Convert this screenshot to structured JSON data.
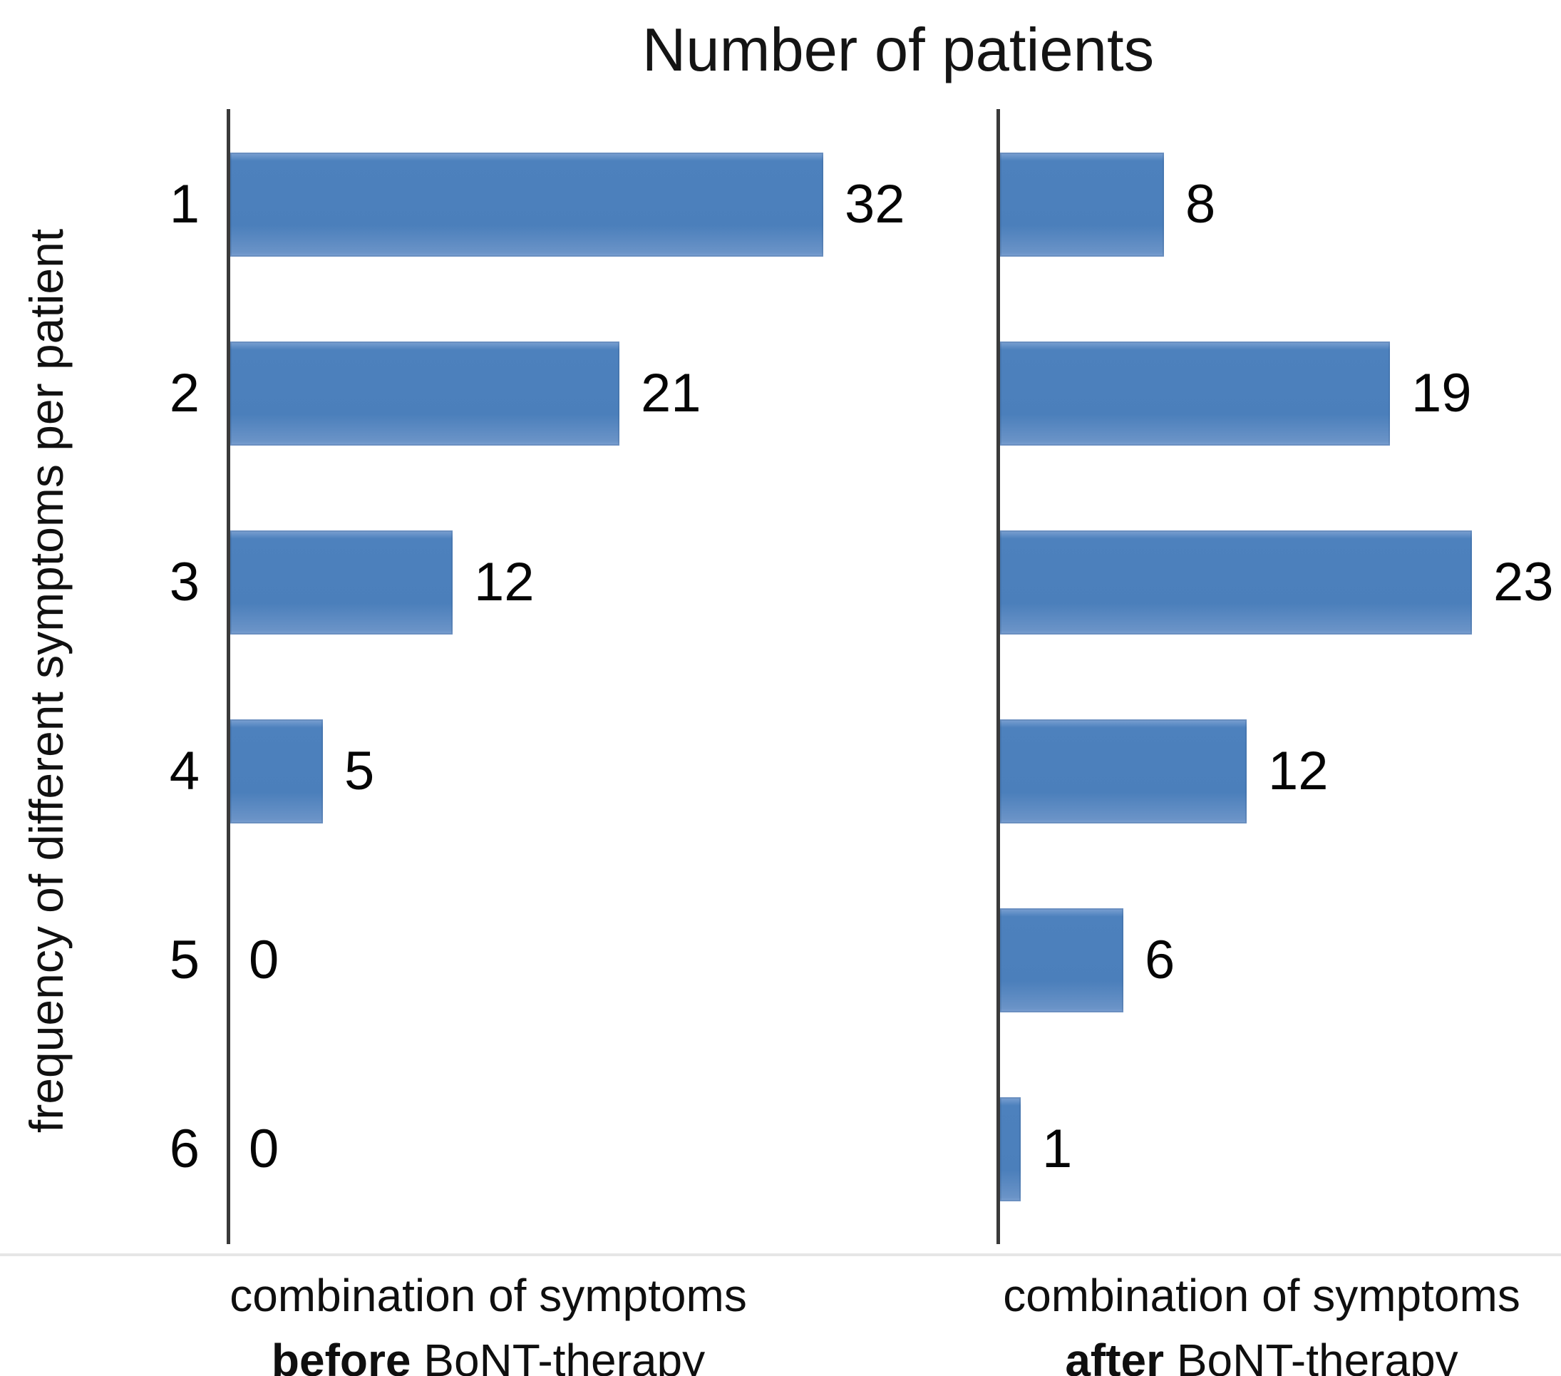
{
  "title": "Number of patients",
  "y_axis_label": "frequency of different symptoms per patient",
  "colors": {
    "bar": "#4d81bd",
    "axis": "#3a3a3a",
    "text": "#0f0f0f",
    "divider": "#e6e6e6"
  },
  "chart_data": {
    "type": "bar",
    "orientation": "horizontal",
    "title": "Number of patients",
    "ylabel": "frequency of different symptoms per patient",
    "categories": [
      "1",
      "2",
      "3",
      "4",
      "5",
      "6"
    ],
    "series": [
      {
        "name": "combination of symptoms before BoNT-therapy",
        "caption": {
          "line1": "combination of symptoms",
          "bold": "before",
          "rest": " BoNT-therapy"
        },
        "values": [
          32,
          21,
          12,
          5,
          0,
          0
        ]
      },
      {
        "name": "combination of symptoms after BoNT-therapy",
        "caption": {
          "line1": "combination of symptoms",
          "bold": "after",
          "rest": " BoNT-therapy"
        },
        "values": [
          8,
          19,
          23,
          12,
          6,
          1
        ]
      }
    ],
    "data_labels": true,
    "grid": false,
    "legend": "none",
    "bar_color": "#4d81bd",
    "axis_ranges": {
      "before_panel": [
        0,
        36
      ],
      "after_panel": [
        0,
        27
      ]
    }
  }
}
